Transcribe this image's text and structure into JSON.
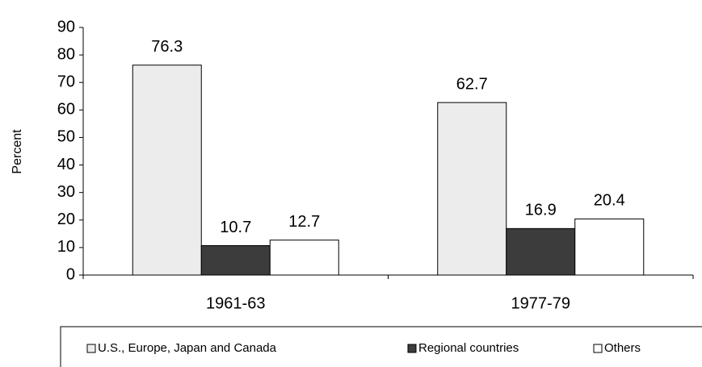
{
  "chart_data": {
    "type": "bar",
    "y_label": "Percent",
    "categories": [
      "1961-63",
      "1977-79"
    ],
    "series": [
      {
        "name": "U.S., Europe, Japan and Canada",
        "color": "#ececec",
        "values": [
          76.3,
          62.7
        ]
      },
      {
        "name": "Regional countries",
        "color": "#3c3c3c",
        "values": [
          10.7,
          16.9
        ]
      },
      {
        "name": "Others",
        "color": "#ffffff",
        "values": [
          12.7,
          20.4
        ]
      }
    ],
    "ylim": [
      0,
      90
    ],
    "yticks": [
      0,
      10,
      20,
      30,
      40,
      50,
      60,
      70,
      80,
      90
    ],
    "legend": "bottom"
  }
}
